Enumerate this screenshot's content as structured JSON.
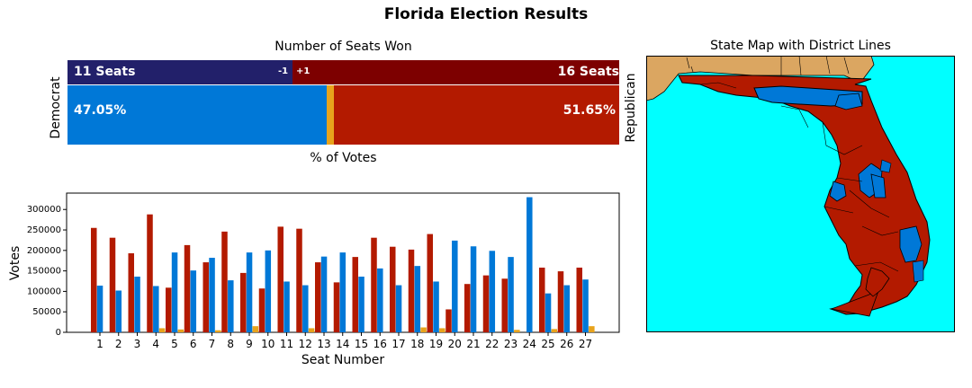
{
  "title": "Florida Election Results",
  "seats_panel": {
    "title": "Number of Seats Won",
    "dem_label": "Democrat",
    "rep_label": "Republican",
    "dem_seats_text": "11 Seats",
    "rep_seats_text": "16 Seats",
    "dem_change": "-1",
    "rep_change": "+1",
    "dem_vote_text": "47.05%",
    "rep_vote_text": "51.65%",
    "votes_caption": "% of Votes"
  },
  "map_panel": {
    "title": "State Map with District Lines"
  },
  "colors": {
    "dem_seat": "#22206a",
    "rep_seat": "#7d0000",
    "dem_vote": "#0078d7",
    "rep_vote": "#b31a00",
    "other_vote": "#e8a31c",
    "water": "#00ffff",
    "neighbor_state": "#dba661"
  },
  "chart_data": [
    {
      "type": "bar",
      "title": "Number of Seats Won",
      "categories": [
        "Seats",
        "% of Votes"
      ],
      "series": [
        {
          "name": "Democrat",
          "values": [
            11,
            47.05
          ]
        },
        {
          "name": "Republican",
          "values": [
            16,
            51.65
          ]
        }
      ]
    },
    {
      "type": "bar",
      "xlabel": "Seat Number",
      "ylabel": "Votes",
      "ylim": [
        0,
        340000
      ],
      "yticks": [
        0,
        50000,
        100000,
        150000,
        200000,
        250000,
        300000
      ],
      "categories": [
        "1",
        "2",
        "3",
        "4",
        "5",
        "6",
        "7",
        "8",
        "9",
        "10",
        "11",
        "12",
        "13",
        "14",
        "15",
        "16",
        "17",
        "18",
        "19",
        "20",
        "21",
        "22",
        "23",
        "24",
        "25",
        "26",
        "27"
      ],
      "series": [
        {
          "name": "Republican",
          "color": "#b31a00",
          "values": [
            255000,
            231000,
            193000,
            288000,
            109000,
            213000,
            171000,
            246000,
            145000,
            107000,
            258000,
            253000,
            171000,
            122000,
            184000,
            231000,
            209000,
            202000,
            240000,
            56000,
            118000,
            139000,
            131000,
            0,
            158000,
            149000,
            158000
          ]
        },
        {
          "name": "Democrat",
          "color": "#0078d7",
          "values": [
            114000,
            102000,
            136000,
            113000,
            195000,
            151000,
            182000,
            127000,
            195000,
            200000,
            124000,
            115000,
            185000,
            195000,
            136000,
            156000,
            115000,
            162000,
            124000,
            224000,
            210000,
            199000,
            184000,
            330000,
            95000,
            115000,
            129000
          ]
        },
        {
          "name": "Other",
          "color": "#e8a31c",
          "values": [
            0,
            0,
            0,
            10000,
            7000,
            0,
            5000,
            0,
            15000,
            0,
            0,
            10000,
            0,
            0,
            0,
            0,
            0,
            12000,
            10000,
            0,
            0,
            0,
            6000,
            0,
            8000,
            0,
            15000
          ]
        }
      ],
      "grid": false
    }
  ]
}
